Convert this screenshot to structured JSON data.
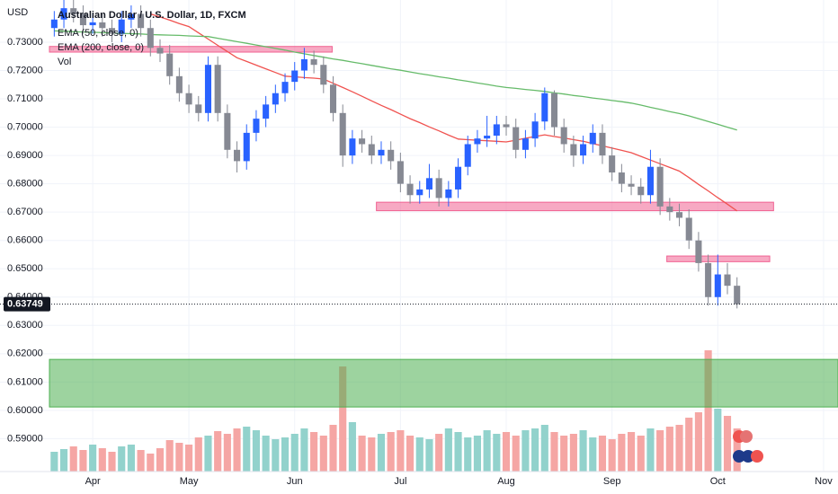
{
  "chart_data": {
    "type": "candlestick",
    "currency": "USD",
    "title": "Australian Dollar / U.S. Dollar, 1D, FXCM",
    "categories": [
      null,
      null,
      null,
      null,
      "Apr",
      null,
      null,
      null,
      null,
      null,
      null,
      null,
      null,
      null,
      "May",
      null,
      null,
      null,
      null,
      null,
      null,
      null,
      null,
      null,
      null,
      "Jun",
      null,
      null,
      null,
      null,
      null,
      null,
      null,
      null,
      null,
      null,
      "Jul",
      null,
      null,
      null,
      null,
      null,
      null,
      null,
      null,
      null,
      null,
      "Aug",
      null,
      null,
      null,
      null,
      null,
      null,
      null,
      null,
      null,
      null,
      "Sep",
      null,
      null,
      null,
      null,
      null,
      null,
      null,
      null,
      null,
      null,
      "Oct",
      null,
      null,
      null,
      null,
      null,
      null,
      null,
      null,
      null,
      null,
      "Nov",
      null
    ],
    "open": [
      0.735,
      0.738,
      0.742,
      0.74,
      0.736,
      0.737,
      0.735,
      0.733,
      0.738,
      0.74,
      0.735,
      0.728,
      0.726,
      0.718,
      0.712,
      0.708,
      0.705,
      0.722,
      0.705,
      0.692,
      0.688,
      0.698,
      0.703,
      0.708,
      0.712,
      0.716,
      0.72,
      0.724,
      0.722,
      0.715,
      0.705,
      0.69,
      0.696,
      0.694,
      0.69,
      0.692,
      0.688,
      0.68,
      0.676,
      0.678,
      0.682,
      0.675,
      0.678,
      0.686,
      0.694,
      0.696,
      0.697,
      0.701,
      0.7,
      0.692,
      0.696,
      0.702,
      0.712,
      0.7,
      0.694,
      0.69,
      0.694,
      0.698,
      0.69,
      0.684,
      0.68,
      0.679,
      0.676,
      0.686,
      0.672,
      0.67,
      0.668,
      0.66,
      0.652,
      0.64,
      0.648,
      0.644,
      null,
      null,
      null,
      null,
      null,
      null,
      null,
      null,
      null,
      null
    ],
    "high": [
      0.741,
      0.745,
      0.745,
      0.743,
      0.74,
      0.74,
      0.738,
      0.741,
      0.743,
      0.743,
      0.738,
      0.731,
      0.729,
      0.721,
      0.715,
      0.711,
      0.725,
      0.725,
      0.708,
      0.695,
      0.701,
      0.706,
      0.711,
      0.715,
      0.719,
      0.723,
      0.728,
      0.727,
      0.725,
      0.718,
      0.708,
      0.699,
      0.699,
      0.697,
      0.695,
      0.695,
      0.691,
      0.683,
      0.681,
      0.687,
      0.685,
      0.681,
      0.689,
      0.697,
      0.699,
      0.704,
      0.704,
      0.704,
      0.703,
      0.699,
      0.705,
      0.714,
      0.713,
      0.703,
      0.697,
      0.697,
      0.701,
      0.701,
      0.693,
      0.687,
      0.683,
      0.682,
      0.692,
      0.689,
      0.675,
      0.673,
      0.671,
      0.663,
      0.655,
      0.655,
      0.652,
      0.647,
      null,
      null,
      null,
      null,
      null,
      null,
      null,
      null,
      null,
      null
    ],
    "low": [
      0.732,
      0.735,
      0.737,
      0.733,
      0.733,
      0.732,
      0.73,
      0.73,
      0.735,
      0.732,
      0.725,
      0.723,
      0.715,
      0.709,
      0.705,
      0.702,
      0.702,
      0.702,
      0.689,
      0.684,
      0.685,
      0.695,
      0.7,
      0.705,
      0.709,
      0.713,
      0.717,
      0.719,
      0.712,
      0.702,
      0.686,
      0.687,
      0.691,
      0.687,
      0.687,
      0.685,
      0.677,
      0.673,
      0.673,
      0.675,
      0.672,
      0.672,
      0.675,
      0.683,
      0.691,
      0.693,
      0.694,
      0.697,
      0.689,
      0.689,
      0.693,
      0.699,
      0.697,
      0.691,
      0.686,
      0.687,
      0.691,
      0.687,
      0.681,
      0.677,
      0.676,
      0.673,
      0.673,
      0.669,
      0.667,
      0.665,
      0.657,
      0.649,
      0.637,
      0.637,
      0.641,
      0.636,
      null,
      null,
      null,
      null,
      null,
      null,
      null,
      null,
      null,
      null
    ],
    "close": [
      0.738,
      0.742,
      0.74,
      0.736,
      0.737,
      0.735,
      0.733,
      0.738,
      0.74,
      0.735,
      0.728,
      0.726,
      0.718,
      0.712,
      0.708,
      0.705,
      0.722,
      0.705,
      0.692,
      0.688,
      0.698,
      0.703,
      0.708,
      0.712,
      0.716,
      0.72,
      0.724,
      0.722,
      0.715,
      0.705,
      0.69,
      0.696,
      0.694,
      0.69,
      0.692,
      0.688,
      0.68,
      0.676,
      0.678,
      0.682,
      0.675,
      0.678,
      0.686,
      0.694,
      0.696,
      0.697,
      0.701,
      0.7,
      0.692,
      0.696,
      0.702,
      0.712,
      0.7,
      0.694,
      0.69,
      0.694,
      0.698,
      0.69,
      0.684,
      0.68,
      0.679,
      0.676,
      0.686,
      0.672,
      0.67,
      0.668,
      0.66,
      0.652,
      0.64,
      0.648,
      0.644,
      0.63749,
      null,
      null,
      null,
      null,
      null,
      null,
      null,
      null,
      null,
      null
    ],
    "up_color": "#2962ff",
    "down_color": "#868993",
    "last_price": 0.63749,
    "volume": {
      "name": "Vol",
      "ylim": [
        0,
        150
      ],
      "up_color": "#92d2cc",
      "down_color": "#f5a6a4",
      "values": [
        22,
        25,
        28,
        24,
        30,
        26,
        22,
        28,
        30,
        24,
        20,
        26,
        35,
        32,
        30,
        38,
        40,
        45,
        42,
        48,
        50,
        46,
        40,
        36,
        38,
        42,
        48,
        44,
        40,
        52,
        117,
        55,
        40,
        38,
        42,
        44,
        46,
        40,
        38,
        36,
        42,
        48,
        44,
        38,
        40,
        46,
        42,
        44,
        40,
        46,
        48,
        52,
        44,
        40,
        42,
        46,
        38,
        40,
        36,
        42,
        44,
        40,
        48,
        46,
        50,
        52,
        60,
        66,
        135,
        70,
        62,
        48,
        null,
        null,
        null,
        null,
        null,
        null,
        null,
        null,
        null,
        null
      ]
    },
    "ema": [
      {
        "name": "EMA (50, close, 0)",
        "color": "#f0524f",
        "values": [
          null,
          null,
          null,
          null,
          null,
          null,
          null,
          null,
          null,
          null,
          0.74,
          0.7389,
          0.7378,
          0.7366,
          0.7355,
          0.7333,
          0.7311,
          0.7289,
          0.7267,
          0.7245,
          0.7232,
          0.7219,
          0.7206,
          0.7193,
          0.718,
          0.7178,
          0.7175,
          0.7173,
          0.717,
          0.7155,
          0.714,
          0.7125,
          0.7109,
          0.7093,
          0.7077,
          0.7062,
          0.7046,
          0.703,
          0.7016,
          0.7001,
          0.6987,
          0.6972,
          0.6958,
          0.6956,
          0.6954,
          0.6952,
          0.695,
          0.6948,
          0.6954,
          0.6961,
          0.6967,
          0.6973,
          0.6967,
          0.6962,
          0.6956,
          0.695,
          0.6942,
          0.6934,
          0.6926,
          0.6918,
          0.691,
          0.6897,
          0.6884,
          0.6871,
          0.6858,
          0.6845,
          0.6822,
          0.6798,
          0.6775,
          0.6751,
          0.6728,
          0.6704,
          null,
          null,
          null,
          null,
          null,
          null,
          null,
          null,
          null,
          null
        ]
      },
      {
        "name": "EMA (200, close, 0)",
        "color": "#66bb6a",
        "values": [
          0.734,
          0.7339,
          0.7337,
          0.7336,
          0.7335,
          0.7334,
          0.7332,
          0.7331,
          0.733,
          0.7329,
          0.7327,
          0.7326,
          0.7325,
          0.7324,
          0.7322,
          0.7321,
          0.732,
          0.7314,
          0.7308,
          0.7302,
          0.7296,
          0.729,
          0.7284,
          0.7278,
          0.7272,
          0.7265,
          0.7259,
          0.7253,
          0.7247,
          0.7241,
          0.7236,
          0.723,
          0.7224,
          0.7218,
          0.7212,
          0.7206,
          0.7201,
          0.7195,
          0.7189,
          0.7184,
          0.7178,
          0.7173,
          0.7167,
          0.7162,
          0.7156,
          0.7151,
          0.7145,
          0.714,
          0.7137,
          0.7133,
          0.713,
          0.7126,
          0.7121,
          0.7117,
          0.7112,
          0.7108,
          0.7103,
          0.7099,
          0.7094,
          0.709,
          0.7085,
          0.7078,
          0.707,
          0.7063,
          0.7055,
          0.7048,
          0.704,
          0.703,
          0.702,
          0.701,
          0.7,
          0.699,
          null,
          null,
          null,
          null,
          null,
          null,
          null,
          null,
          null,
          null
        ]
      }
    ],
    "zones": [
      {
        "y0": 0.7265,
        "y1": 0.7285,
        "from": 0,
        "to": 29.4,
        "color": "#f06292"
      },
      {
        "y0": 0.6705,
        "y1": 0.6735,
        "from": 34,
        "to": 75.3,
        "color": "#f06292"
      },
      {
        "y0": 0.6525,
        "y1": 0.6545,
        "from": 64.2,
        "to": 74.9,
        "color": "#f06292"
      },
      {
        "y0": 0.6012,
        "y1": 0.618,
        "from": 0,
        "to": 82,
        "color": "#4caf50"
      }
    ],
    "ylim": [
      0.5784,
      0.7449
    ],
    "yticks": [
      {
        "value": 0.59,
        "label": "0.59000"
      },
      {
        "value": 0.6,
        "label": "0.60000"
      },
      {
        "value": 0.61,
        "label": "0.61000"
      },
      {
        "value": 0.62,
        "label": "0.62000"
      },
      {
        "value": 0.63,
        "label": "0.63000"
      },
      {
        "value": 0.64,
        "label": "0.64000"
      },
      {
        "value": 0.65,
        "label": "0.65000"
      },
      {
        "value": 0.66,
        "label": "0.66000"
      },
      {
        "value": 0.67,
        "label": "0.67000"
      },
      {
        "value": 0.68,
        "label": "0.68000"
      },
      {
        "value": 0.69,
        "label": "0.69000"
      },
      {
        "value": 0.7,
        "label": "0.70000"
      },
      {
        "value": 0.71,
        "label": "0.71000"
      },
      {
        "value": 0.72,
        "label": "0.72000"
      },
      {
        "value": 0.73,
        "label": "0.73000"
      }
    ],
    "grid": true
  }
}
